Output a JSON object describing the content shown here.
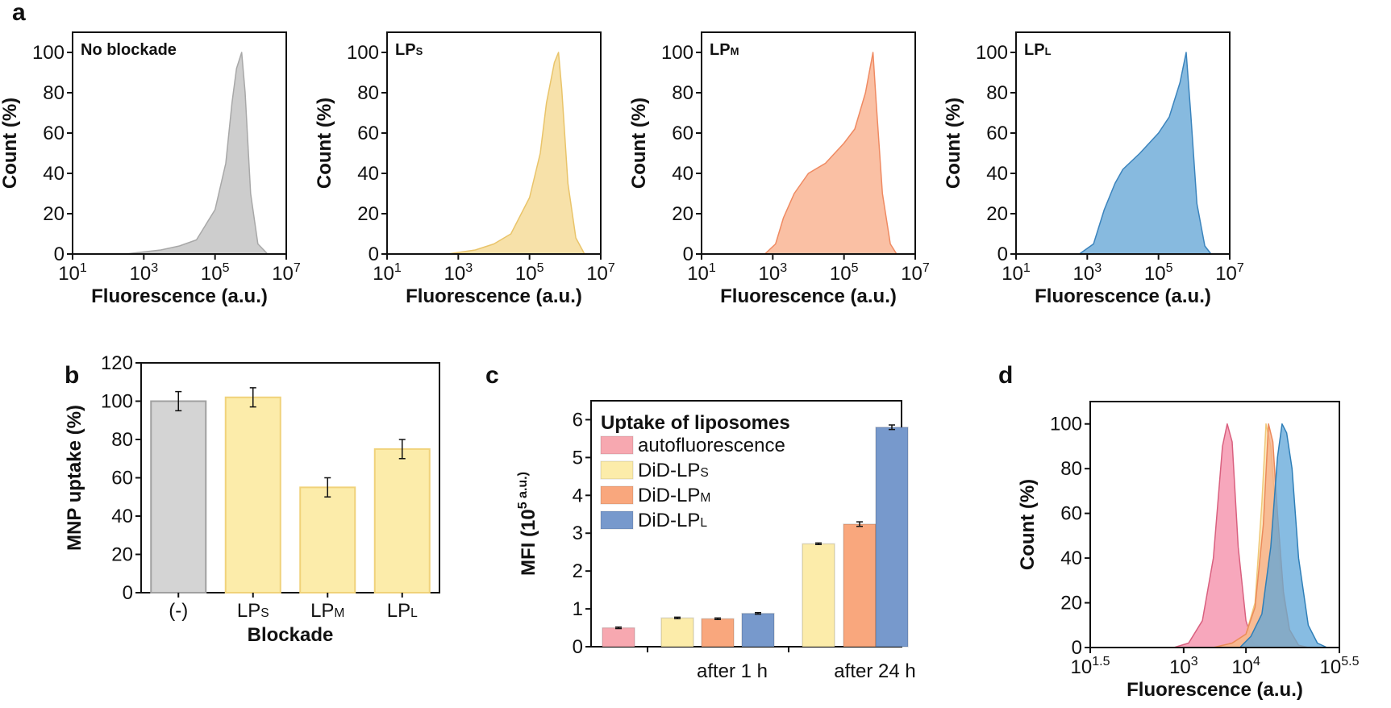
{
  "panel_labels": [
    "a",
    "b",
    "c",
    "d"
  ],
  "chart_data": [
    {
      "type": "area",
      "panel": "a",
      "title": "No blockade",
      "xlabel": "Fluorescence (a.u.)",
      "ylabel": "Count (%)",
      "xscale": "log",
      "xlim": [
        10.0,
        10000000.0
      ],
      "ylim": [
        0,
        110
      ],
      "xticks": [
        "10^1",
        "10^3",
        "10^5",
        "10^7"
      ],
      "yticks": [
        0,
        20,
        40,
        60,
        80,
        100
      ],
      "color": "#c8c8c8",
      "edge": "#a8a8a8",
      "x": [
        300.0,
        3000.0,
        10000.0,
        30000.0,
        100000.0,
        200000.0,
        300000.0,
        400000.0,
        560000.0,
        700000.0,
        1000000.0,
        1600000.0,
        3000000.0
      ],
      "y": [
        0,
        2,
        4,
        7,
        22,
        45,
        75,
        92,
        100,
        80,
        30,
        5,
        0
      ]
    },
    {
      "type": "area",
      "panel": "a",
      "title": "LPS",
      "xlabel": "Fluorescence (a.u.)",
      "ylabel": "Count (%)",
      "xscale": "log",
      "xlim": [
        10.0,
        10000000.0
      ],
      "ylim": [
        0,
        110
      ],
      "xticks": [
        "10^1",
        "10^3",
        "10^5",
        "10^7"
      ],
      "yticks": [
        0,
        20,
        40,
        60,
        80,
        100
      ],
      "color": "#f6dea0",
      "edge": "#e9c46a",
      "x": [
        500.0,
        3000.0,
        10000.0,
        30000.0,
        100000.0,
        200000.0,
        300000.0,
        500000.0,
        650000.0,
        800000.0,
        1200000.0,
        2000000.0,
        3500000.0
      ],
      "y": [
        0,
        2,
        5,
        10,
        28,
        50,
        75,
        95,
        100,
        82,
        35,
        8,
        0
      ]
    },
    {
      "type": "area",
      "panel": "a",
      "title": "LPM",
      "xlabel": "Fluorescence (a.u.)",
      "ylabel": "Count (%)",
      "xscale": "log",
      "xlim": [
        10.0,
        10000000.0
      ],
      "ylim": [
        0,
        110
      ],
      "xticks": [
        "10^1",
        "10^3",
        "10^5",
        "10^7"
      ],
      "yticks": [
        0,
        20,
        40,
        60,
        80,
        100
      ],
      "color": "#f9b99a",
      "edge": "#ef8a62",
      "x": [
        600.0,
        1200.0,
        2000.0,
        4000.0,
        10000.0,
        30000.0,
        100000.0,
        200000.0,
        400000.0,
        650000.0,
        800000.0,
        1200000.0,
        2000000.0,
        3000000.0
      ],
      "y": [
        0,
        5,
        18,
        30,
        40,
        45,
        55,
        62,
        80,
        100,
        75,
        30,
        5,
        0
      ]
    },
    {
      "type": "area",
      "panel": "a",
      "title": "LPL",
      "xlabel": "Fluorescence (a.u.)",
      "ylabel": "Count (%)",
      "xscale": "log",
      "xlim": [
        10.0,
        10000000.0
      ],
      "ylim": [
        0,
        110
      ],
      "xticks": [
        "10^1",
        "10^3",
        "10^5",
        "10^7"
      ],
      "yticks": [
        0,
        20,
        40,
        60,
        80,
        100
      ],
      "color": "#7ab3dc",
      "edge": "#3b84bd",
      "x": [
        600.0,
        1500.0,
        3000.0,
        6000.0,
        10000.0,
        30000.0,
        100000.0,
        200000.0,
        400000.0,
        600000.0,
        800000.0,
        1200000.0,
        2000000.0,
        3000000.0
      ],
      "y": [
        0,
        5,
        22,
        35,
        42,
        50,
        60,
        68,
        85,
        100,
        70,
        25,
        4,
        0
      ]
    },
    {
      "type": "bar",
      "panel": "b",
      "xlabel": "Blockade",
      "ylabel": "MNP uptake (%)",
      "categories": [
        "(-)",
        "LPS",
        "LPM",
        "LPL"
      ],
      "values": [
        100,
        102,
        55,
        75
      ],
      "errors": [
        5,
        5,
        5,
        5
      ],
      "colors": [
        "#d4d4d4",
        "#fcecaa",
        "#fcecaa",
        "#fcecaa"
      ],
      "edges": [
        "#a0a0a0",
        "#f0d27a",
        "#f0d27a",
        "#f0d27a"
      ],
      "ylim": [
        0,
        120
      ],
      "yticks": [
        0,
        20,
        40,
        60,
        80,
        100,
        120
      ]
    },
    {
      "type": "bar",
      "panel": "c",
      "ylabel": "MFI (10^5 a.u.)",
      "legend_title": "Uptake of liposomes",
      "legend_placement": "top-left",
      "groups": [
        "after 1 h",
        "after 24 h"
      ],
      "series": [
        {
          "name": "autofluorescence",
          "color": "#f7a8b0"
        },
        {
          "name": "DiD-LPS",
          "color": "#fcecaa"
        },
        {
          "name": "DiD-LPM",
          "color": "#f9a77d"
        },
        {
          "name": "DiD-LPL",
          "color": "#7799cc"
        }
      ],
      "bars": [
        {
          "series": 0,
          "group": null,
          "value": 0.5,
          "error": 0.02
        },
        {
          "series": 1,
          "group": 0,
          "value": 0.76,
          "error": 0.02
        },
        {
          "series": 2,
          "group": 0,
          "value": 0.74,
          "error": 0.02
        },
        {
          "series": 3,
          "group": 0,
          "value": 0.88,
          "error": 0.02
        },
        {
          "series": 1,
          "group": 1,
          "value": 2.72,
          "error": 0.02
        },
        {
          "series": 2,
          "group": 1,
          "value": 3.24,
          "error": 0.06
        },
        {
          "series": 3,
          "group": 1,
          "value": 5.8,
          "error": 0.06
        }
      ],
      "ylim": [
        0,
        6.5
      ],
      "yticks": [
        0,
        1,
        2,
        3,
        4,
        5,
        6
      ]
    },
    {
      "type": "area",
      "panel": "d",
      "xlabel": "Fluorescence (a.u.)",
      "ylabel": "Count (%)",
      "xscale": "log",
      "xlim": [
        31.6,
        316228
      ],
      "ylim": [
        0,
        110
      ],
      "xticks": [
        "10^1.5",
        "10^3",
        "10^4",
        "10^5.5"
      ],
      "yticks": [
        0,
        20,
        40,
        60,
        80,
        100
      ],
      "series": [
        {
          "color": "#f48aa6",
          "edge": "#d9607f",
          "x": [
            700,
            1200,
            2000,
            3000,
            4200,
            5000,
            6000,
            7500,
            10000.0,
            13000.0,
            18000.0
          ],
          "y": [
            0,
            2,
            12,
            40,
            90,
            100,
            92,
            45,
            12,
            2,
            0
          ]
        },
        {
          "color": "#fbe0a8",
          "edge": "#f0c878",
          "x": [
            3000.0,
            6000.0,
            10000.0,
            14000.0,
            18000.0,
            21000.0,
            25000.0,
            30000.0,
            38000.0,
            50000.0,
            70000.0,
            100000.0
          ],
          "y": [
            0,
            2,
            6,
            20,
            65,
            100,
            90,
            60,
            25,
            8,
            1,
            0
          ]
        },
        {
          "color": "#f7ad85",
          "edge": "#ec8a5a",
          "x": [
            3000.0,
            6000.0,
            10000.0,
            14000.0,
            19000.0,
            23000.0,
            27000.0,
            32000.0,
            40000.0,
            50000.0,
            70000.0,
            100000.0
          ],
          "y": [
            0,
            2,
            6,
            18,
            55,
            100,
            92,
            60,
            25,
            8,
            1,
            0
          ]
        },
        {
          "color": "#5fa6d8",
          "edge": "#2f7fb8",
          "x": [
            8000.0,
            12000.0,
            18000.0,
            25000.0,
            32000.0,
            38000.0,
            45000.0,
            55000.0,
            70000.0,
            100000.0,
            140000.0,
            200000.0
          ],
          "y": [
            0,
            5,
            15,
            45,
            85,
            100,
            96,
            80,
            40,
            10,
            2,
            0
          ]
        }
      ]
    }
  ]
}
